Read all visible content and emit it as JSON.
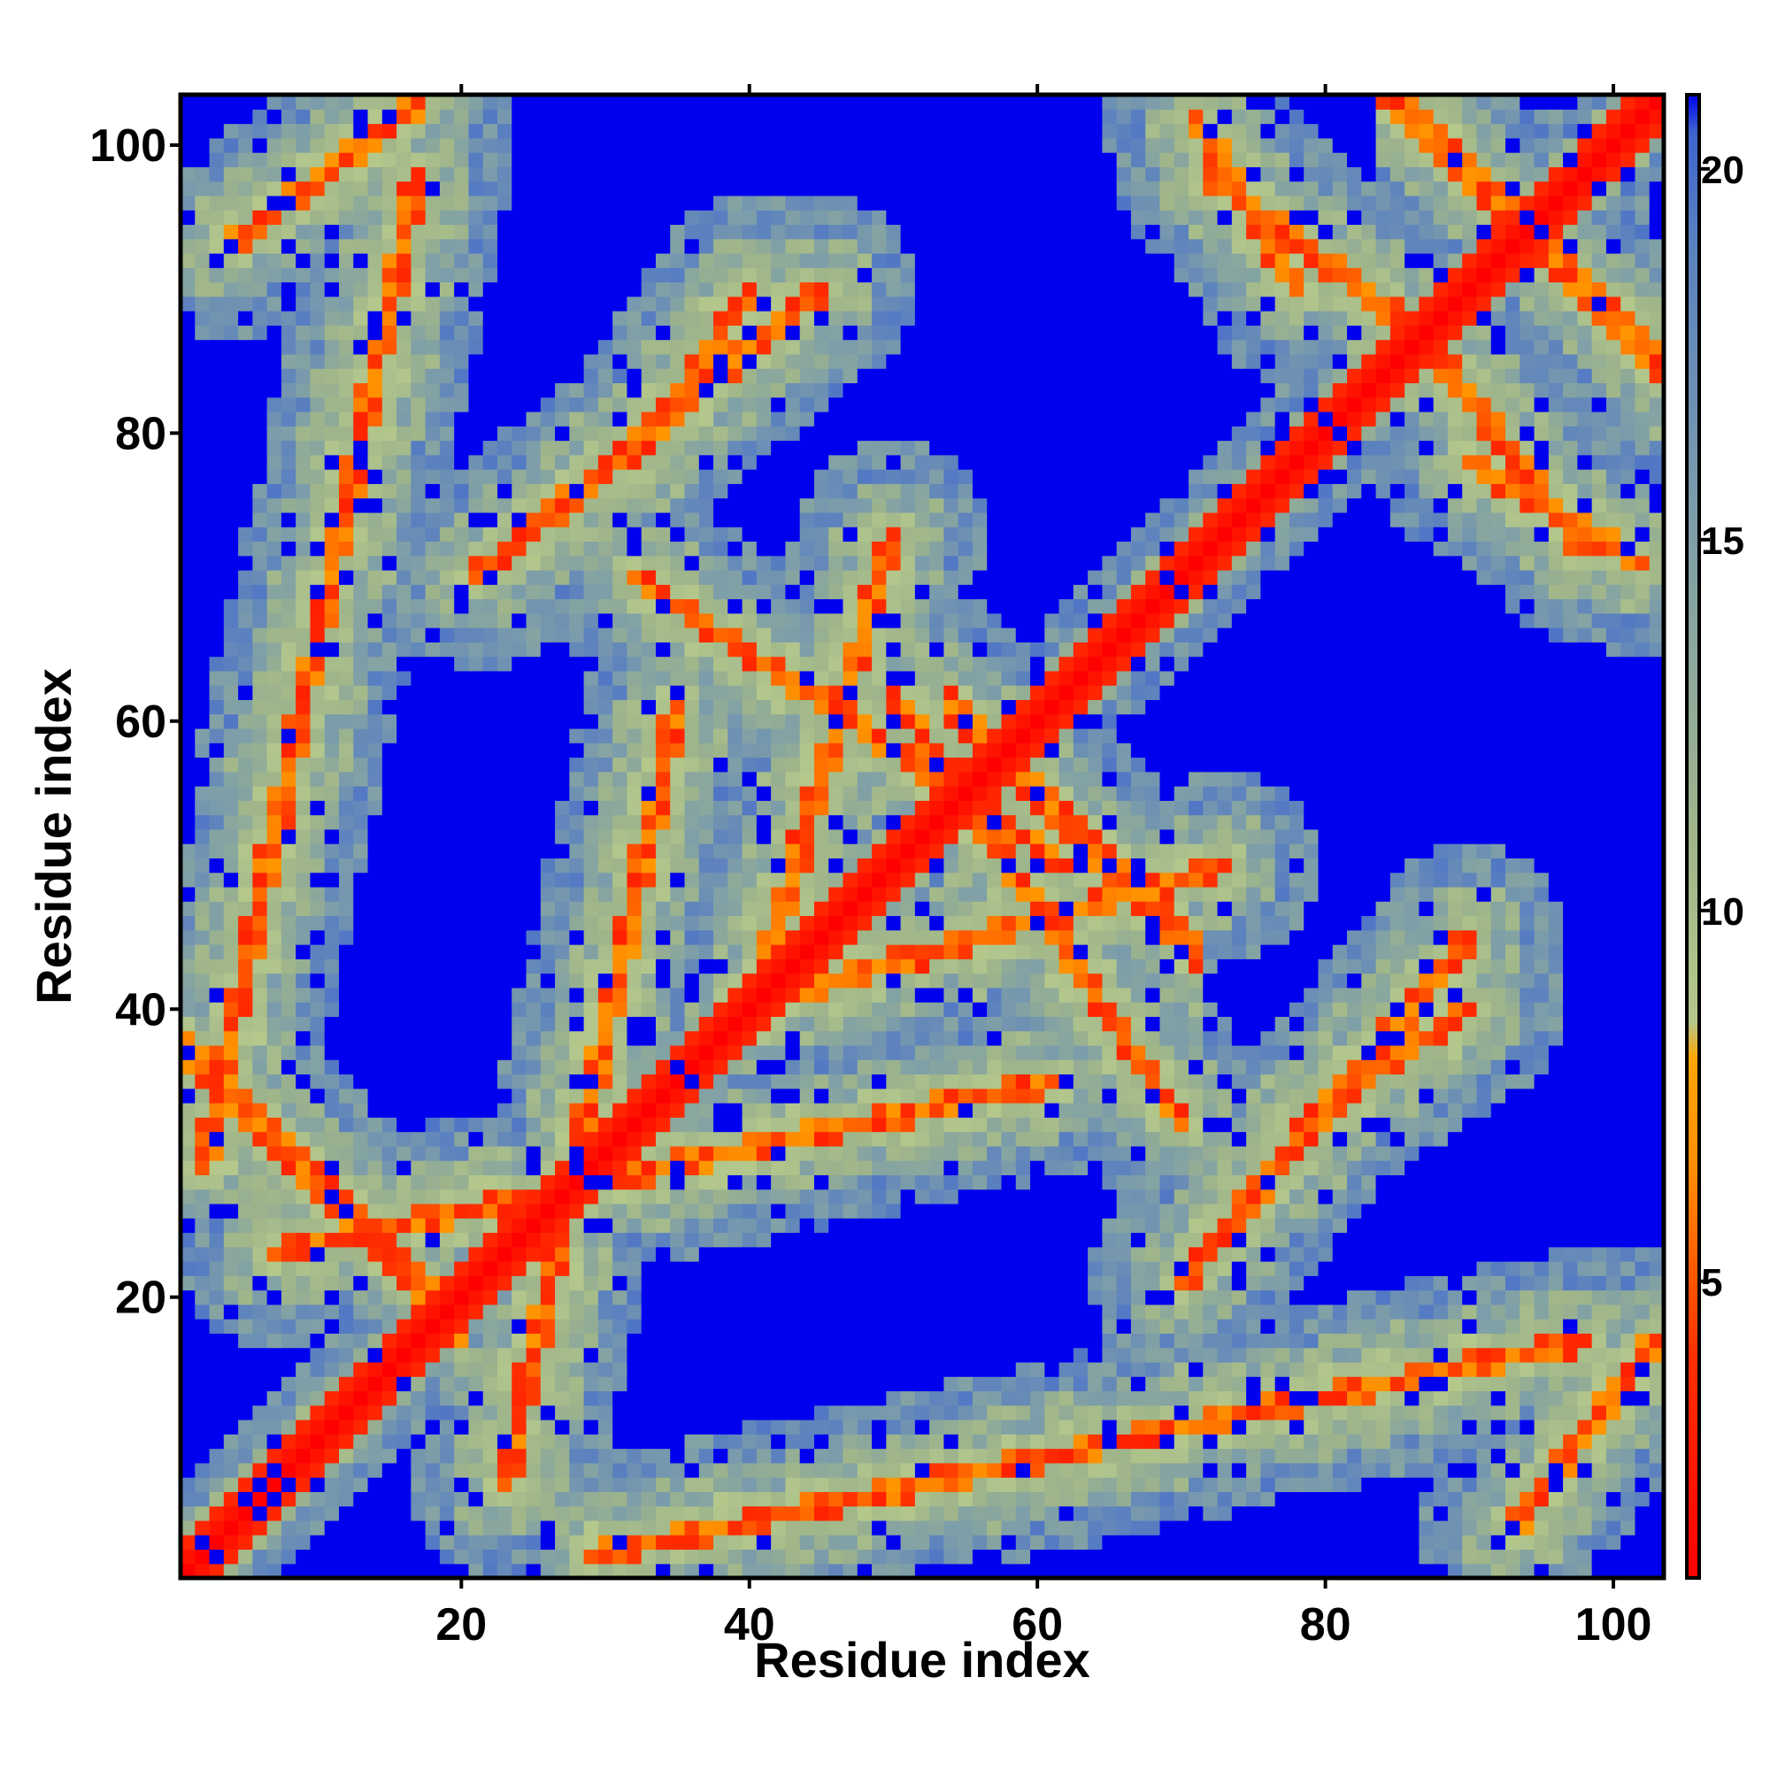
{
  "chart_data": {
    "type": "heatmap",
    "title": "",
    "xlabel": "Residue index",
    "ylabel": "Residue index",
    "n_residues": 103,
    "xlim": [
      0.5,
      103.5
    ],
    "ylim": [
      0.5,
      103.5
    ],
    "x_ticks": [
      20,
      40,
      60,
      80,
      100
    ],
    "y_ticks": [
      20,
      40,
      60,
      80,
      100
    ],
    "colorbar": {
      "range": [
        1,
        21
      ],
      "ticks": [
        5,
        10,
        15,
        20
      ],
      "stops": [
        {
          "value": 1,
          "color": "#ff0000"
        },
        {
          "value": 4,
          "color": "#ff3000"
        },
        {
          "value": 6.5,
          "color": "#ff8c00"
        },
        {
          "value": 8,
          "color": "#ffa500"
        },
        {
          "value": 8.5,
          "color": "#b4c88c"
        },
        {
          "value": 11,
          "color": "#9fb58a"
        },
        {
          "value": 15,
          "color": "#7f9fa8"
        },
        {
          "value": 19,
          "color": "#5a80c0"
        },
        {
          "value": 20.5,
          "color": "#3d63d0"
        },
        {
          "value": 21,
          "color": "#0000ee"
        }
      ]
    },
    "colors": {
      "far": "#0000ee",
      "near": "#ff0000"
    },
    "structure": {
      "description": "symmetric residue contact-distance map; main diagonal (distance ~1) plus antiparallel contact bands",
      "diagonal_value": 1,
      "background_value": 21,
      "antidiagonal_bands": [
        {
          "i_plus_j": 38,
          "i_range": [
            2,
            19
          ]
        },
        {
          "i_plus_j": 115,
          "i_range": [
            55,
            70
          ]
        },
        {
          "i_plus_j": 188,
          "i_range": [
            85,
            103
          ]
        }
      ],
      "offdiagonal_segments": [
        {
          "i_range": [
            2,
            17
          ],
          "j_range": [
            29,
            98
          ]
        },
        {
          "i_range": [
            23,
            35
          ],
          "j_range": [
            7,
            61
          ]
        },
        {
          "i_range": [
            32,
            40
          ],
          "j_range": [
            78,
            90
          ]
        },
        {
          "i_range": [
            40,
            50
          ],
          "j_range": [
            39,
            73
          ]
        },
        {
          "i_range": [
            50,
            70
          ],
          "j_range": [
            62,
            32
          ]
        },
        {
          "i_range": [
            70,
            90
          ],
          "j_range": [
            21,
            45
          ]
        },
        {
          "i_range": [
            72,
            85
          ],
          "j_range": [
            98,
            88
          ]
        },
        {
          "i_range": [
            90,
            102
          ],
          "j_range": [
            78,
            71
          ]
        },
        {
          "i_range": [
            93,
            103
          ],
          "j_range": [
            4,
            17
          ]
        }
      ]
    }
  }
}
